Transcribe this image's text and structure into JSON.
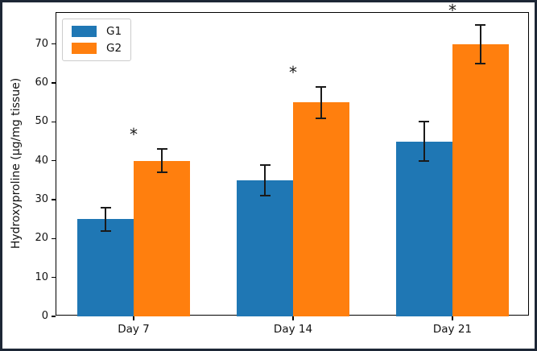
{
  "figure": {
    "background": "#ffffff",
    "frame_border_color": "#1d2736",
    "axes_spine_color": "#000000",
    "errorbar_color": "#1a1a1a"
  },
  "chart_data": {
    "type": "bar",
    "title": "",
    "xlabel": "",
    "ylabel": "Hydroxyproline (µg/mg tissue)",
    "categories": [
      "Day 7",
      "Day 14",
      "Day 21"
    ],
    "series": [
      {
        "name": "G1",
        "color": "#1f77b4",
        "values": [
          25,
          35,
          45
        ],
        "errors": [
          3,
          4,
          5
        ]
      },
      {
        "name": "G2",
        "color": "#ff7f0e",
        "values": [
          40,
          55,
          70
        ],
        "errors": [
          3,
          4,
          5
        ]
      }
    ],
    "significance": {
      "marker": "*",
      "on_series": "G2",
      "categories": [
        "Day 7",
        "Day 14",
        "Day 21"
      ]
    },
    "ylim": [
      0,
      78
    ],
    "yticks": [
      0,
      10,
      20,
      30,
      40,
      50,
      60,
      70
    ],
    "grid": false,
    "legend": {
      "position": "upper left",
      "entries": [
        "G1",
        "G2"
      ]
    }
  }
}
